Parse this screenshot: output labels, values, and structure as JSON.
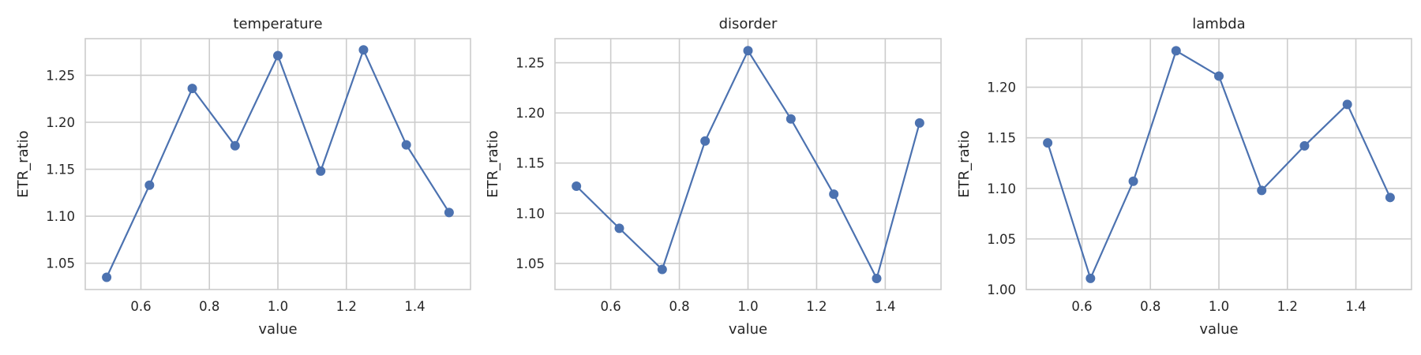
{
  "colors": {
    "series": "#4c72b0"
  },
  "chart_data": [
    {
      "type": "line",
      "title": "temperature",
      "xlabel": "value",
      "ylabel": "ETR_ratio",
      "xlim": [
        0.4375,
        1.5625
      ],
      "ylim": [
        1.022,
        1.289
      ],
      "xticks": [
        0.6,
        0.8,
        1.0,
        1.2,
        1.4
      ],
      "xtick_labels": [
        "0.6",
        "0.8",
        "1.0",
        "1.2",
        "1.4"
      ],
      "yticks": [
        1.05,
        1.1,
        1.15,
        1.2,
        1.25
      ],
      "ytick_labels": [
        "1.05",
        "1.10",
        "1.15",
        "1.20",
        "1.25"
      ],
      "grid": true,
      "x": [
        0.5,
        0.625,
        0.75,
        0.875,
        1.0,
        1.125,
        1.25,
        1.375,
        1.5
      ],
      "y": [
        1.035,
        1.133,
        1.236,
        1.175,
        1.271,
        1.148,
        1.277,
        1.176,
        1.104
      ]
    },
    {
      "type": "line",
      "title": "disorder",
      "xlabel": "value",
      "ylabel": "ETR_ratio",
      "xlim": [
        0.4375,
        1.5625
      ],
      "ylim": [
        1.024,
        1.274
      ],
      "xticks": [
        0.6,
        0.8,
        1.0,
        1.2,
        1.4
      ],
      "xtick_labels": [
        "0.6",
        "0.8",
        "1.0",
        "1.2",
        "1.4"
      ],
      "yticks": [
        1.05,
        1.1,
        1.15,
        1.2,
        1.25
      ],
      "ytick_labels": [
        "1.05",
        "1.10",
        "1.15",
        "1.20",
        "1.25"
      ],
      "grid": true,
      "x": [
        0.5,
        0.625,
        0.75,
        0.875,
        1.0,
        1.125,
        1.25,
        1.375,
        1.5
      ],
      "y": [
        1.127,
        1.085,
        1.044,
        1.172,
        1.262,
        1.194,
        1.119,
        1.035,
        1.19
      ]
    },
    {
      "type": "line",
      "title": "lambda",
      "xlabel": "value",
      "ylabel": "ETR_ratio",
      "xlim": [
        0.4375,
        1.5625
      ],
      "ylim": [
        1.0,
        1.248
      ],
      "xticks": [
        0.6,
        0.8,
        1.0,
        1.2,
        1.4
      ],
      "xtick_labels": [
        "0.6",
        "0.8",
        "1.0",
        "1.2",
        "1.4"
      ],
      "yticks": [
        1.0,
        1.05,
        1.1,
        1.15,
        1.2
      ],
      "ytick_labels": [
        "1.00",
        "1.05",
        "1.10",
        "1.15",
        "1.20"
      ],
      "grid": true,
      "x": [
        0.5,
        0.625,
        0.75,
        0.875,
        1.0,
        1.125,
        1.25,
        1.375,
        1.5
      ],
      "y": [
        1.145,
        1.011,
        1.107,
        1.236,
        1.211,
        1.098,
        1.142,
        1.183,
        1.091
      ]
    }
  ]
}
